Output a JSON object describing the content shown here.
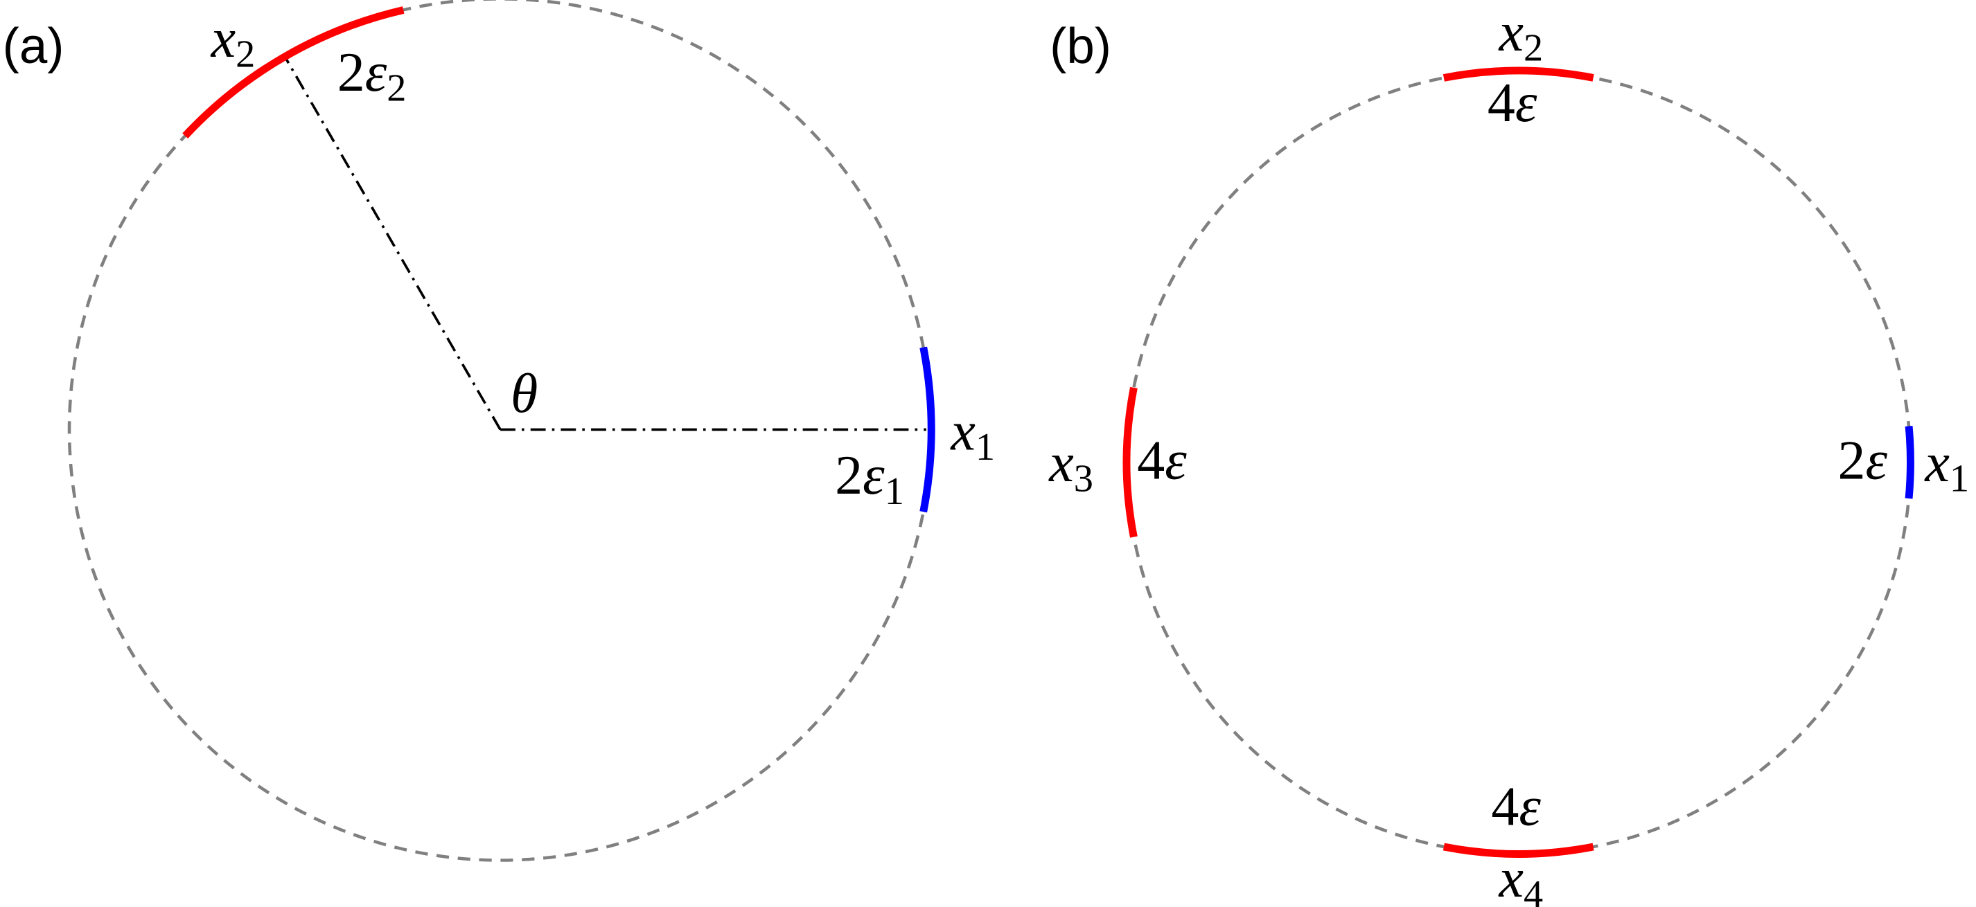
{
  "panels": [
    {
      "tag": "(a)",
      "labels": [
        {
          "symbol": "x",
          "sub": "2"
        },
        {
          "coef": "2",
          "symbol": "ε",
          "sub": "2"
        },
        {
          "symbol": "θ"
        },
        {
          "symbol": "x",
          "sub": "1"
        },
        {
          "coef": "2",
          "symbol": "ε",
          "sub": "1"
        }
      ]
    },
    {
      "tag": "(b)",
      "labels": [
        {
          "symbol": "x",
          "sub": "2"
        },
        {
          "coef": "4",
          "symbol": "ε"
        },
        {
          "symbol": "x",
          "sub": "3"
        },
        {
          "coef": "4",
          "symbol": "ε"
        },
        {
          "coef": "2",
          "symbol": "ε"
        },
        {
          "symbol": "x",
          "sub": "1"
        },
        {
          "coef": "4",
          "symbol": "ε"
        },
        {
          "symbol": "x",
          "sub": "4"
        }
      ]
    }
  ]
}
